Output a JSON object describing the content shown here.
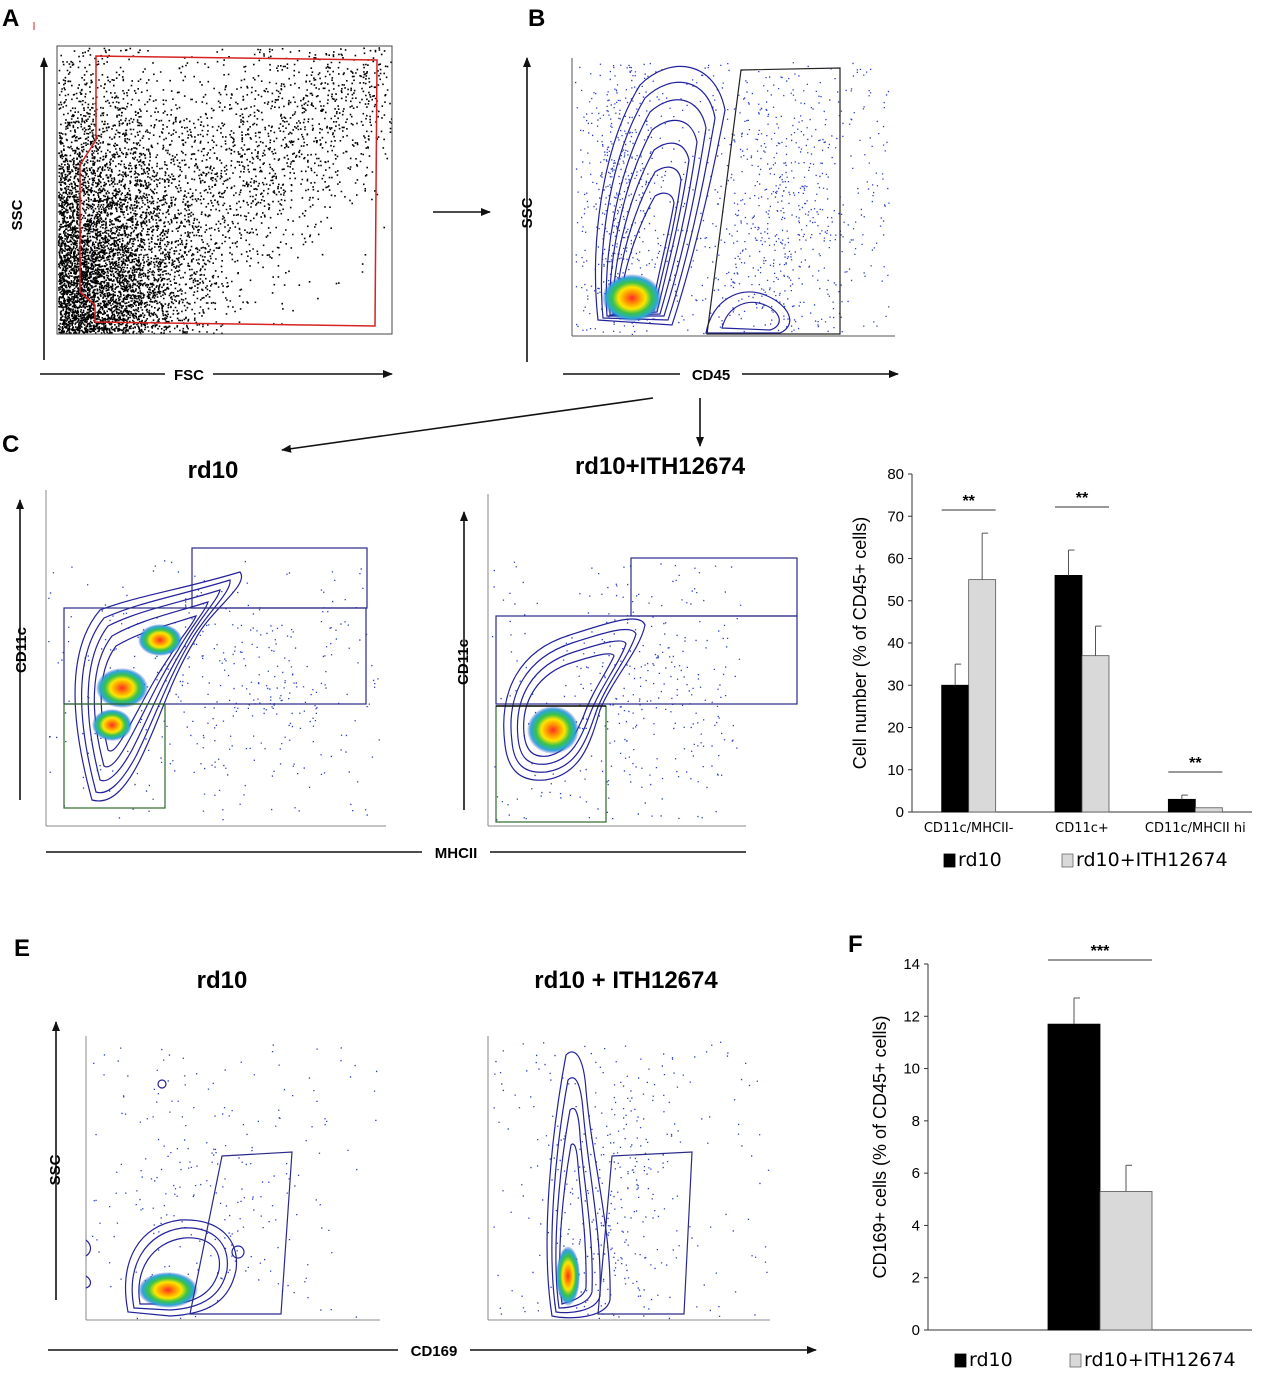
{
  "panels": {
    "A": {
      "letter": "A",
      "xlabel": "FSC",
      "ylabel": "SSC"
    },
    "B": {
      "letter": "B",
      "xlabel": "CD45",
      "ylabel": "SSC"
    },
    "C": {
      "letter": "C",
      "cond_left": "rd10",
      "cond_right": "rd10+ITH12674",
      "xlabel": "MHCII",
      "ylabel_left": "CD11c",
      "ylabel_right": "CD11c"
    },
    "E": {
      "letter": "E",
      "cond_left": "rd10",
      "cond_right": "rd10 + ITH12674",
      "xlabel": "CD169",
      "ylabel": "SSC"
    },
    "F": {
      "letter": "F"
    }
  },
  "colors": {
    "rd10": "#000000",
    "rd10_ith": "#d9d9d9",
    "gate_red": "#d62222",
    "contour_blue": "#1a1a8c"
  },
  "chart_data": [
    {
      "type": "bar",
      "title": "",
      "ylabel": "Cell number (% of CD45+ cells)",
      "xlabel": "",
      "ylim": [
        0,
        80
      ],
      "yticks": [
        0,
        10,
        20,
        30,
        40,
        50,
        60,
        70,
        80
      ],
      "categories": [
        "CD11c/MHCII-",
        "CD11c+",
        "CD11c/MHCII hi"
      ],
      "series": [
        {
          "name": "rd10",
          "values": [
            30,
            56,
            3
          ],
          "errors": [
            5,
            6,
            1
          ]
        },
        {
          "name": "rd10+ITH12674",
          "values": [
            55,
            37,
            1
          ],
          "errors": [
            11,
            7,
            0
          ]
        }
      ],
      "significance": [
        "**",
        "**",
        "**"
      ],
      "legend": {
        "position": "bottom",
        "labels": [
          "rd10",
          "rd10+ITH12674"
        ]
      }
    },
    {
      "type": "bar",
      "title": "",
      "ylabel": "CD169+ cells (% of CD45+ cells)",
      "xlabel": "",
      "ylim": [
        0,
        14
      ],
      "yticks": [
        0,
        2,
        4,
        6,
        8,
        10,
        12,
        14
      ],
      "categories": [
        ""
      ],
      "series": [
        {
          "name": "rd10",
          "values": [
            11.7
          ],
          "errors": [
            1.0
          ]
        },
        {
          "name": "rd10+ITH12674",
          "values": [
            5.3
          ],
          "errors": [
            1.0
          ]
        }
      ],
      "significance": [
        "***"
      ],
      "legend": {
        "position": "bottom",
        "labels": [
          "rd10",
          "rd10+ITH12674"
        ]
      }
    }
  ]
}
